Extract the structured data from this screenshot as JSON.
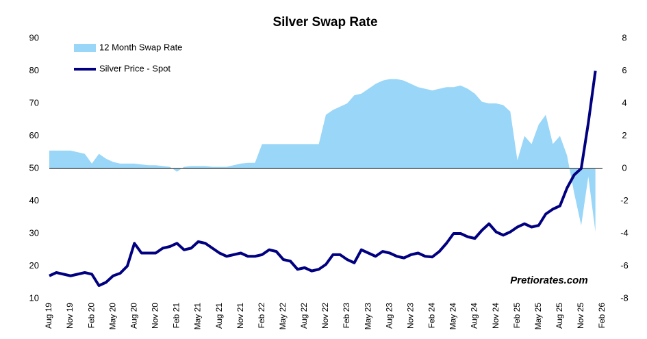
{
  "chart_data": {
    "type": "area-line",
    "title": "Silver Swap Rate",
    "annotation": "Pretiorates.com",
    "categories": [
      "Aug 19",
      null,
      null,
      "Nov 19",
      null,
      null,
      "Feb 20",
      null,
      null,
      "May 20",
      null,
      null,
      "Aug 20",
      null,
      null,
      "Nov 20",
      null,
      null,
      "Feb 21",
      null,
      null,
      "May 21",
      null,
      null,
      "Aug 21",
      null,
      null,
      "Nov 21",
      null,
      null,
      "Feb 22",
      null,
      null,
      "May 22",
      null,
      null,
      "Aug 22",
      null,
      null,
      "Nov 22",
      null,
      null,
      "Feb 23",
      null,
      null,
      "May 23",
      null,
      null,
      "Aug 23",
      null,
      null,
      "Nov 23",
      null,
      null,
      "Feb 24",
      null,
      null,
      "May 24",
      null,
      null,
      "Aug 24",
      null,
      null,
      "Nov 24",
      null,
      null,
      "Feb 25",
      null,
      null,
      "May 25",
      null,
      null,
      "Aug 25",
      null,
      null,
      "Nov 25",
      null,
      null,
      "Feb 26"
    ],
    "series": [
      {
        "name": "12 Month Swap Rate",
        "color": "#99d6f8",
        "kind": "area",
        "axis": "y2",
        "values": [
          1.1,
          1.1,
          1.1,
          1.1,
          1.0,
          0.9,
          0.3,
          0.9,
          0.6,
          0.4,
          0.3,
          0.3,
          0.3,
          0.25,
          0.2,
          0.2,
          0.15,
          0.1,
          -0.2,
          0.1,
          0.15,
          0.15,
          0.15,
          0.1,
          0.1,
          0.1,
          0.2,
          0.3,
          0.35,
          0.35,
          1.5,
          1.5,
          1.5,
          1.5,
          1.5,
          1.5,
          1.5,
          1.5,
          1.5,
          3.3,
          3.6,
          3.8,
          4.0,
          4.5,
          4.6,
          4.9,
          5.2,
          5.4,
          5.5,
          5.5,
          5.4,
          5.2,
          5.0,
          4.9,
          4.8,
          4.9,
          5.0,
          5.0,
          5.1,
          4.9,
          4.6,
          4.1,
          4.0,
          4.0,
          3.9,
          3.5,
          0.5,
          2.0,
          1.5,
          2.7,
          3.3,
          1.5,
          2.0,
          0.8,
          -1.5,
          -3.5,
          -0.5,
          -3.9,
          null
        ]
      },
      {
        "name": "Silver Price - Spot",
        "color": "#000080",
        "kind": "line",
        "values": [
          17,
          18,
          17.5,
          17,
          17.5,
          18,
          17.5,
          14,
          15,
          17,
          17.8,
          20,
          27,
          24,
          24,
          24,
          25.5,
          26,
          27,
          25,
          25.5,
          27.5,
          27,
          25.5,
          24,
          23,
          23.5,
          24,
          23,
          23,
          23.5,
          25,
          24.5,
          22,
          21.5,
          19,
          19.5,
          18.5,
          19,
          20.5,
          23.5,
          23.5,
          22,
          21,
          25,
          24,
          23,
          24.5,
          24,
          23,
          22.5,
          23.5,
          24,
          23,
          22.8,
          24.5,
          27,
          30,
          30,
          29,
          28.5,
          31,
          33,
          30.5,
          29.5,
          30.5,
          32,
          33,
          32,
          32.5,
          36,
          37.5,
          38.5,
          44,
          48,
          50,
          64,
          80,
          null
        ]
      }
    ],
    "ylim": [
      10,
      90
    ],
    "yticks": [
      10,
      20,
      30,
      40,
      50,
      60,
      70,
      80,
      90
    ],
    "y2lim": [
      -8,
      8
    ],
    "y2ticks": [
      -8,
      -6,
      -4,
      -2,
      0,
      2,
      4,
      6,
      8
    ],
    "grid": false,
    "legend": "top-left"
  }
}
